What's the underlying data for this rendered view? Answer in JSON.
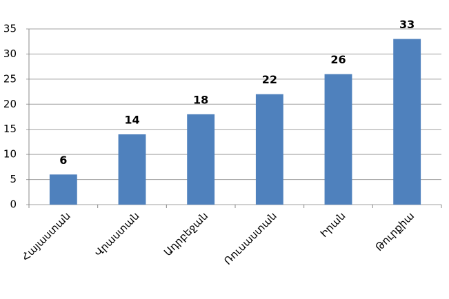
{
  "chart_data": {
    "type": "bar",
    "categories": [
      "Հայաստան",
      "Վրաստան",
      "Ադրբեջան",
      "Ռուսաստան",
      "Իրան",
      "Թուրքիա"
    ],
    "values": [
      6,
      14,
      18,
      22,
      26,
      33
    ],
    "color": "#4f81bd",
    "ylim": [
      0,
      35
    ],
    "yticks": [
      0,
      5,
      10,
      15,
      20,
      25,
      30,
      35
    ],
    "grid": true,
    "data_labels": true
  }
}
